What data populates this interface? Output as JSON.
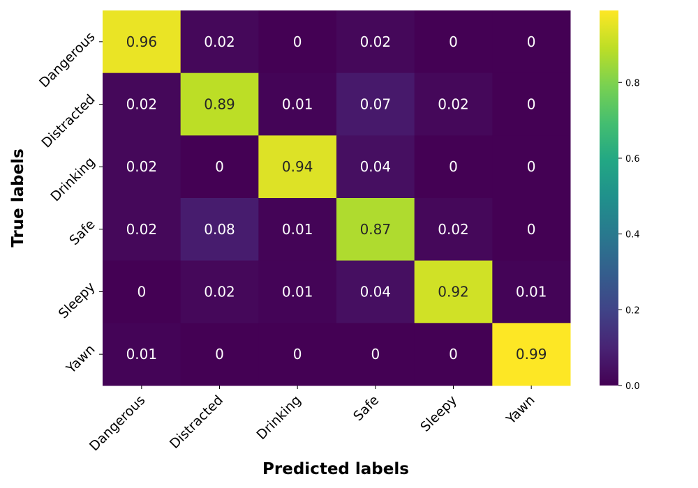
{
  "chart_data": {
    "type": "heatmap",
    "xlabel": "Predicted labels",
    "ylabel": "True labels",
    "x_categories": [
      "Dangerous",
      "Distracted",
      "Drinking",
      "Safe",
      "Sleepy",
      "Yawn"
    ],
    "y_categories": [
      "Dangerous",
      "Distracted",
      "Drinking",
      "Safe",
      "Sleepy",
      "Yawn"
    ],
    "values": [
      [
        0.96,
        0.02,
        0,
        0.02,
        0,
        0
      ],
      [
        0.02,
        0.89,
        0.01,
        0.07,
        0.02,
        0
      ],
      [
        0.02,
        0,
        0.94,
        0.04,
        0,
        0
      ],
      [
        0.02,
        0.08,
        0.01,
        0.87,
        0.02,
        0
      ],
      [
        0,
        0.02,
        0.01,
        0.04,
        0.92,
        0.01
      ],
      [
        0.01,
        0,
        0,
        0,
        0,
        0.99
      ]
    ],
    "colormap": "viridis",
    "colorbar": {
      "range": [
        0,
        0.99
      ],
      "ticks": [
        0.0,
        0.2,
        0.4,
        0.6,
        0.8
      ],
      "tick_labels": [
        "0.0",
        "0.2",
        "0.4",
        "0.6",
        "0.8"
      ]
    },
    "annotations": true,
    "grid": false
  }
}
